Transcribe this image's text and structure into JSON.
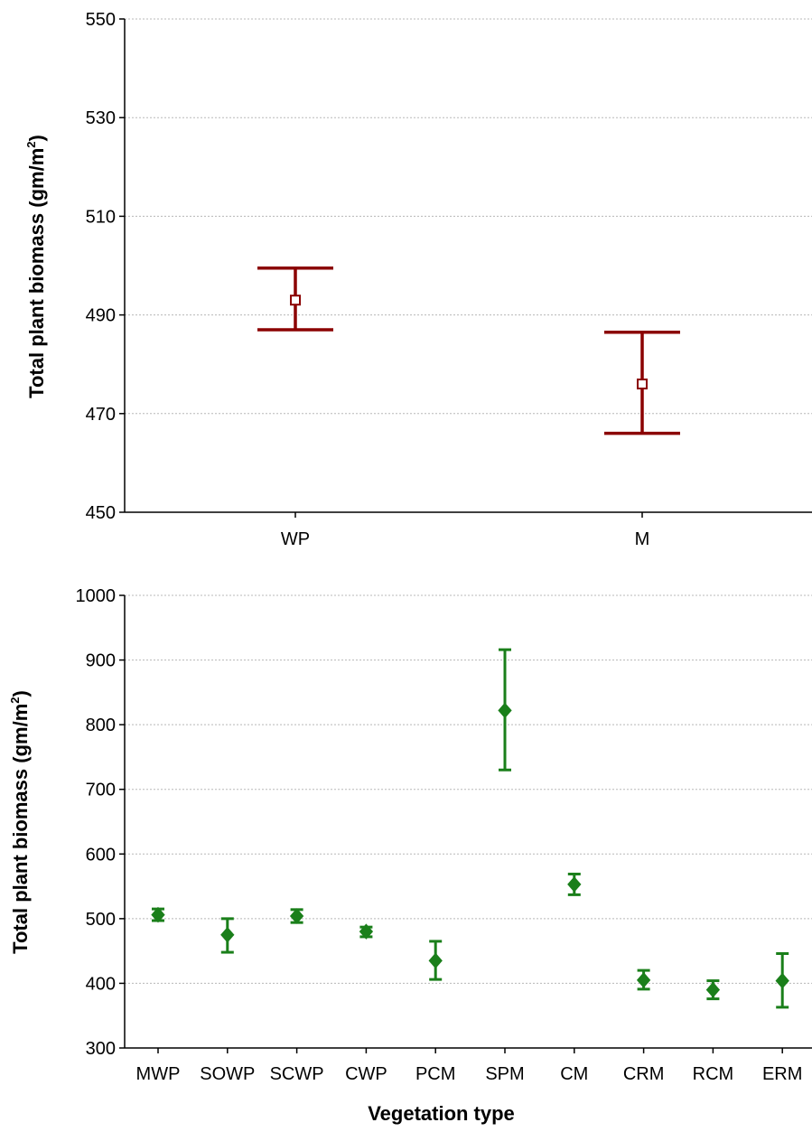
{
  "chart_data": [
    {
      "type": "errorbar",
      "xlabel": "",
      "ylabel": "Total plant biomass (gm/m",
      "ylabel_sup": "2",
      "ylabel_close": ")",
      "ylim": [
        450,
        550
      ],
      "yticks": [
        450,
        470,
        490,
        510,
        530,
        550
      ],
      "grid": true,
      "marker": "open-square",
      "color": "#8b0000",
      "categories": [
        "WP",
        "M"
      ],
      "means": [
        493,
        476
      ],
      "lower": [
        487,
        466
      ],
      "upper": [
        499.5,
        486.5
      ]
    },
    {
      "type": "errorbar",
      "xlabel": "Vegetation type",
      "ylabel": "Total plant biomass (gm/m",
      "ylabel_sup": "2",
      "ylabel_close": ")",
      "ylim": [
        300,
        1000
      ],
      "yticks": [
        300,
        400,
        500,
        600,
        700,
        800,
        900,
        1000
      ],
      "grid": true,
      "marker": "filled-diamond",
      "color": "#1a7f1a",
      "categories": [
        "MWP",
        "SOWP",
        "SCWP",
        "CWP",
        "PCM",
        "SPM",
        "CM",
        "CRM",
        "RCM",
        "ERM"
      ],
      "means": [
        506,
        475,
        504,
        480,
        435,
        822,
        553,
        405,
        390,
        404
      ],
      "lower": [
        497,
        448,
        494,
        472,
        406,
        730,
        537,
        391,
        376,
        363
      ],
      "upper": [
        515,
        500,
        514,
        487,
        465,
        916,
        569,
        420,
        404,
        446
      ]
    }
  ]
}
